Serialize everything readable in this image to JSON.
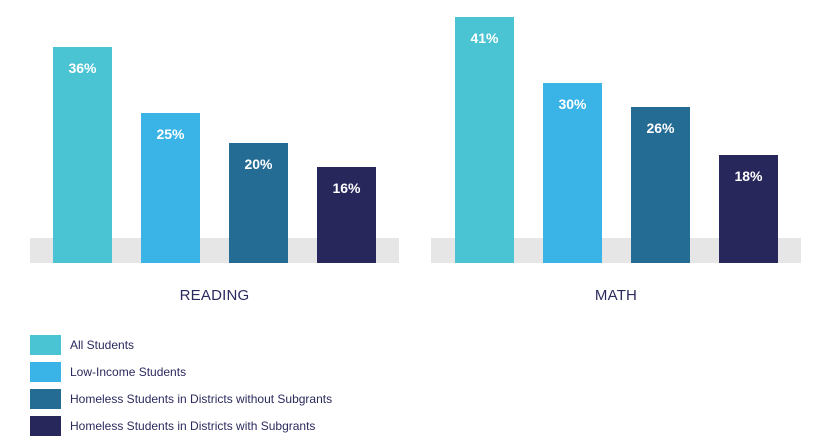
{
  "chart_data": {
    "type": "bar",
    "categories": [
      "READING",
      "MATH"
    ],
    "series": [
      {
        "name": "All Students",
        "values": [
          36,
          41
        ],
        "color": "#4ac3d3"
      },
      {
        "name": "Low-Income Students",
        "values": [
          25,
          30
        ],
        "color": "#3ab3e6"
      },
      {
        "name": "Homeless Students in Districts without Subgrants",
        "values": [
          20,
          26
        ],
        "color": "#256c95"
      },
      {
        "name": "Homeless Students in Districts with Subgrants",
        "values": [
          16,
          18
        ],
        "color": "#28275c"
      }
    ],
    "value_format": "{v}%",
    "ylim": [
      0,
      41
    ],
    "baseline_band_color": "#e6e6e6",
    "legend_position": "bottom-left",
    "grid": false
  }
}
